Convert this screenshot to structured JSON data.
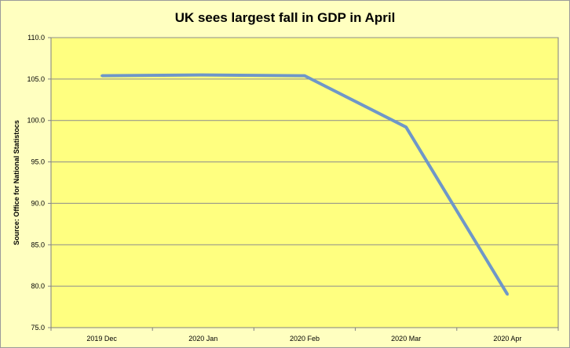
{
  "chart_data": {
    "type": "line",
    "title": "UK sees largest fall in GDP in April",
    "xlabel": "",
    "ylabel": "Source: Office for National Statistocs",
    "categories": [
      "2019 Dec",
      "2020 Jan",
      "2020 Feb",
      "2020 Mar",
      "2020 Apr"
    ],
    "series": [
      {
        "values": [
          105.4,
          105.5,
          105.4,
          99.2,
          79.0
        ]
      }
    ],
    "ylim": [
      75.0,
      110.0
    ],
    "yticks": [
      "75.0",
      "80.0",
      "85.0",
      "90.0",
      "95.0",
      "100.0",
      "105.0",
      "110.0"
    ],
    "grid": true,
    "legend": "none",
    "colors": {
      "background": "#ffffc0",
      "plot_area": "#ffff80",
      "line": "#6f97c8",
      "grid": "#8c8c8c",
      "axis": "#7f7f7f"
    }
  }
}
